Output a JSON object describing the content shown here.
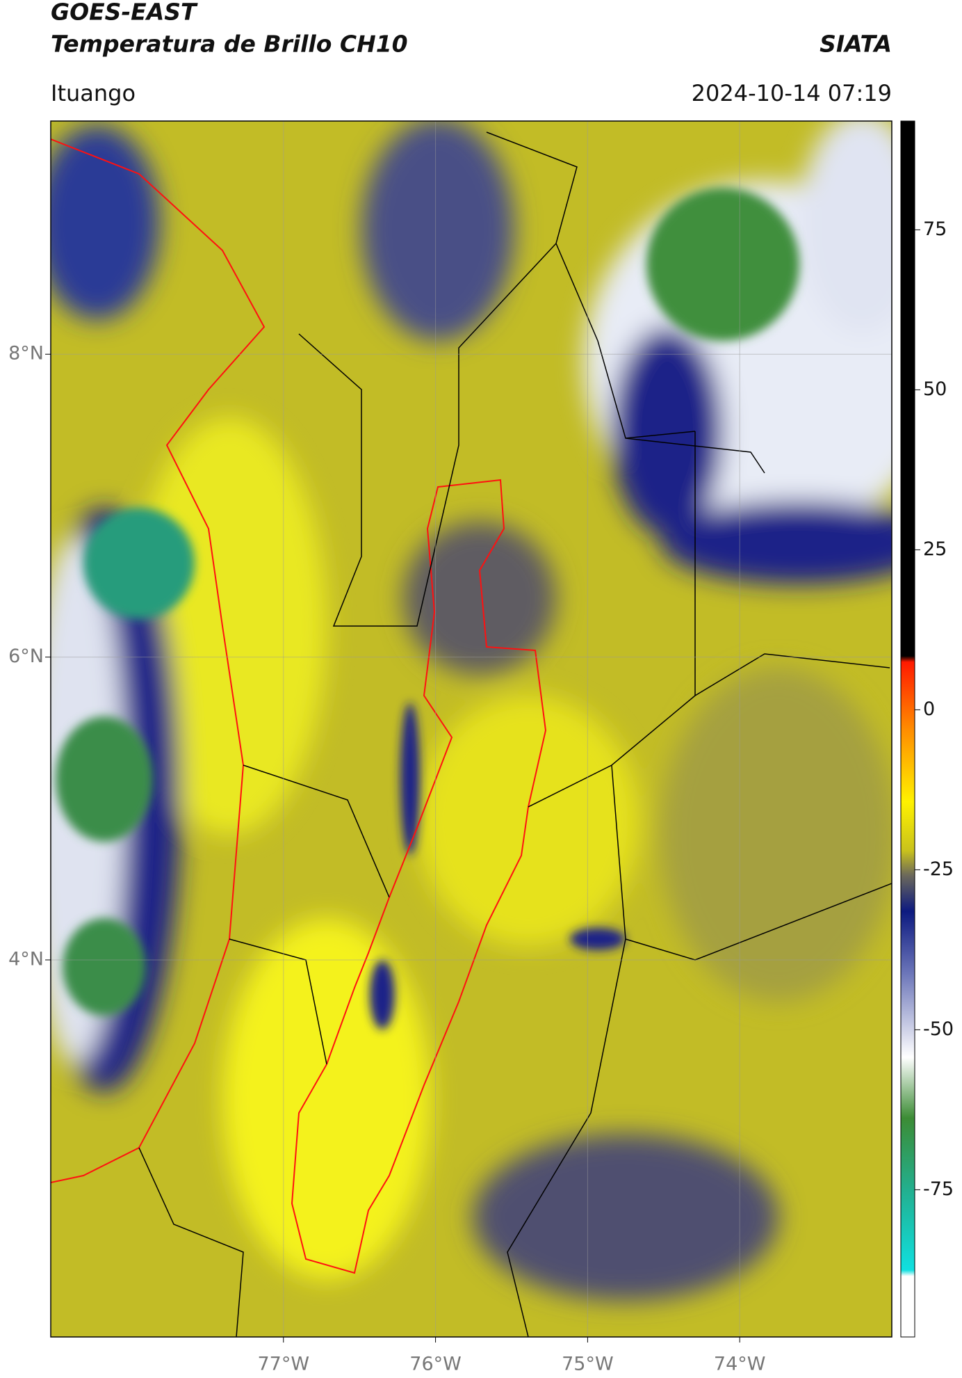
{
  "header": {
    "title": "GOES-EAST",
    "subtitle": "Temperatura de Brillo CH10",
    "source": "SIATA",
    "place": "Ituango",
    "date": "2024-10-14 07:19"
  },
  "map": {
    "xlim": [
      -78.53,
      -73.0
    ],
    "ylim": [
      1.51,
      9.54
    ],
    "xticks": [
      {
        "value": -77,
        "label": "77°W"
      },
      {
        "value": -76,
        "label": "76°W"
      },
      {
        "value": -75,
        "label": "75°W"
      },
      {
        "value": -74,
        "label": "74°W"
      }
    ],
    "yticks": [
      {
        "value": 8,
        "label": "8°N"
      },
      {
        "value": 6,
        "label": "6°N"
      },
      {
        "value": 4,
        "label": "4°N"
      }
    ],
    "grid": true
  },
  "colorbar": {
    "clim": [
      -98,
      92
    ],
    "ticks": [
      75,
      50,
      25,
      0,
      -25,
      -50,
      -75
    ]
  }
}
